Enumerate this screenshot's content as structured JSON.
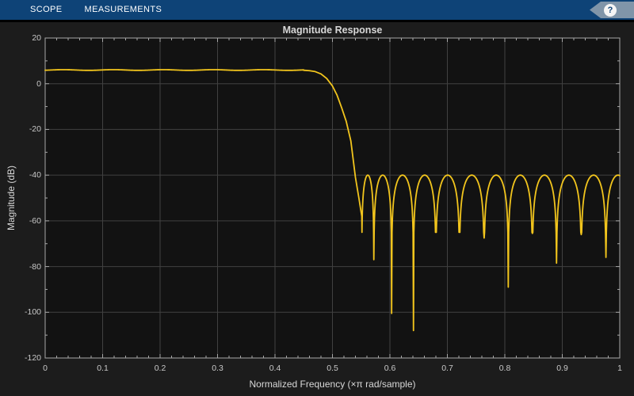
{
  "toolbar": {
    "tabs": [
      {
        "label": "SCOPE"
      },
      {
        "label": "MEASUREMENTS"
      }
    ],
    "help_label": "?"
  },
  "colors": {
    "toolbar-bg": "#0e4377",
    "toolbar-text": "#ffffff",
    "help-tag": "#8095a9",
    "help-circle": "#f5f5f5",
    "window-seam": "#000000",
    "fig-bg": "#1c1c1c",
    "axes-bg": "#121212",
    "grid-line": "#414141",
    "axis-line": "#a8a8a8",
    "tick-text": "#c8c8c8",
    "label-text": "#d8d8d8",
    "curve": "#f2c51d"
  },
  "chart_data": {
    "type": "line",
    "title": "Magnitude Response",
    "xlabel": "Normalized Frequency (×π rad/sample)",
    "ylabel": "Magnitude (dB)",
    "xlim": [
      0,
      1
    ],
    "ylim": [
      -120,
      20
    ],
    "xticks": [
      0,
      0.1,
      0.2,
      0.3,
      0.4,
      0.5,
      0.6,
      0.7,
      0.8,
      0.9,
      1
    ],
    "yticks": [
      20,
      0,
      -20,
      -40,
      -60,
      -80,
      -100,
      -120
    ],
    "x_minor_step": 0.02,
    "y_minor_step": 10,
    "grid": true,
    "legend": null,
    "series": [
      {
        "name": "magnitude-response",
        "color": "#f2c51d",
        "passband_db": 6,
        "passband_edge": 0.45,
        "passband_ripple_db": 0.15,
        "passband_ripple_period": 0.087,
        "passband_ripple_peak": 0.032,
        "transition_points": [
          [
            0.45,
            5.9
          ],
          [
            0.46,
            5.7
          ],
          [
            0.47,
            5.3
          ],
          [
            0.48,
            4.3
          ],
          [
            0.49,
            2.3
          ],
          [
            0.5,
            -1.0
          ],
          [
            0.508,
            -5.0
          ],
          [
            0.516,
            -10.5
          ],
          [
            0.524,
            -16.5
          ],
          [
            0.532,
            -25.0
          ],
          [
            0.54,
            -41.0
          ],
          [
            0.546,
            -50.0
          ]
        ],
        "stopband_top_db": -40,
        "stopband_nulls": [
          [
            0.551,
            -58
          ],
          [
            0.572,
            -77
          ],
          [
            0.603,
            -100.5
          ],
          [
            0.641,
            -108
          ],
          [
            0.68,
            -64.5
          ],
          [
            0.721,
            -64.5
          ],
          [
            0.764,
            -67.5
          ],
          [
            0.806,
            -89
          ],
          [
            0.848,
            -65.5
          ],
          [
            0.89,
            -78.5
          ],
          [
            0.933,
            -66
          ],
          [
            0.976,
            -76
          ]
        ],
        "end_virtual_null_f": 1.018,
        "end_virtual_null_db": -60
      }
    ]
  }
}
